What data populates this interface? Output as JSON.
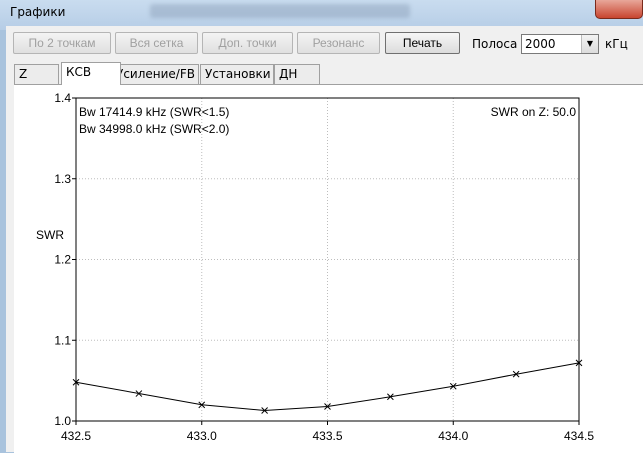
{
  "window": {
    "title": "Графики"
  },
  "toolbar": {
    "btn_two_points": "По 2 точкам",
    "btn_full_grid": "Вся сетка",
    "btn_extra_points": "Доп. точки",
    "btn_resonance": "Резонанс",
    "btn_print": "Печать",
    "band_label": "Полоса",
    "band_value": "2000",
    "band_unit": "кГц"
  },
  "tabs": [
    {
      "label": "Z"
    },
    {
      "label": "КСВ"
    },
    {
      "label": "Усиление/FB"
    },
    {
      "label": "Установки"
    },
    {
      "label": "ДН"
    }
  ],
  "chart_data": {
    "type": "line",
    "ylabel": "SWR",
    "xlim": [
      432.5,
      434.5
    ],
    "ylim": [
      1.0,
      1.4
    ],
    "x_ticks": [
      "432.5",
      "433.0",
      "433.5",
      "434.0",
      "434.5"
    ],
    "x_tick_values": [
      432.5,
      433.0,
      433.5,
      434.0,
      434.5
    ],
    "y_ticks": [
      "1.0",
      "1.1",
      "1.2",
      "1.3",
      "1.4"
    ],
    "y_tick_values": [
      1.0,
      1.1,
      1.2,
      1.3,
      1.4
    ],
    "grid": true,
    "annotations": {
      "bw1": "Bw 17414.9 kHz (SWR<1.5)",
      "bw2": "Bw 34998.0 kHz (SWR<2.0)",
      "swr_on_z": "SWR on Z: 50.0"
    },
    "series": [
      {
        "x": [
          432.5,
          432.75,
          433.0,
          433.25,
          433.5,
          433.75,
          434.0,
          434.25,
          434.5
        ],
        "y": [
          1.048,
          1.034,
          1.02,
          1.013,
          1.018,
          1.03,
          1.043,
          1.058,
          1.072
        ]
      }
    ],
    "line_color": "#000000"
  }
}
